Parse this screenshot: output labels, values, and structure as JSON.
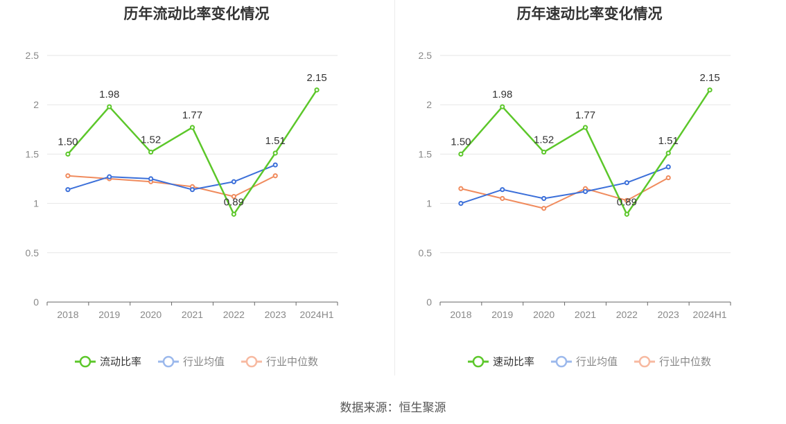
{
  "source_label": "数据来源：恒生聚源",
  "colors": {
    "primary": "#5cc72a",
    "avg": "#3b6fd9",
    "median": "#f08b5d",
    "avg_legend": "#9bb8ec",
    "median_legend": "#f7b9a0"
  },
  "chart_data": [
    {
      "type": "line",
      "title": "历年流动比率变化情况",
      "categories": [
        "2018",
        "2019",
        "2020",
        "2021",
        "2022",
        "2023",
        "2024H1"
      ],
      "ylim": [
        0,
        2.5
      ],
      "yticks": [
        "0",
        "0.5",
        "1",
        "1.5",
        "2",
        "2.5"
      ],
      "grid": true,
      "legend_position": "bottom",
      "series": [
        {
          "name": "流动比率",
          "values": [
            1.5,
            1.98,
            1.52,
            1.77,
            0.89,
            1.51,
            2.15
          ],
          "labels": [
            "1.50",
            "1.98",
            "1.52",
            "1.77",
            "0.89",
            "1.51",
            "2.15"
          ]
        },
        {
          "name": "行业均值",
          "values": [
            1.14,
            1.27,
            1.25,
            1.14,
            1.22,
            1.39,
            null
          ]
        },
        {
          "name": "行业中位数",
          "values": [
            1.28,
            1.25,
            1.22,
            1.17,
            1.07,
            1.28,
            null
          ]
        }
      ]
    },
    {
      "type": "line",
      "title": "历年速动比率变化情况",
      "categories": [
        "2018",
        "2019",
        "2020",
        "2021",
        "2022",
        "2023",
        "2024H1"
      ],
      "ylim": [
        0,
        2.5
      ],
      "yticks": [
        "0",
        "0.5",
        "1",
        "1.5",
        "2",
        "2.5"
      ],
      "grid": true,
      "legend_position": "bottom",
      "series": [
        {
          "name": "速动比率",
          "values": [
            1.5,
            1.98,
            1.52,
            1.77,
            0.89,
            1.51,
            2.15
          ],
          "labels": [
            "1.50",
            "1.98",
            "1.52",
            "1.77",
            "0.89",
            "1.51",
            "2.15"
          ]
        },
        {
          "name": "行业均值",
          "values": [
            1.0,
            1.14,
            1.05,
            1.12,
            1.21,
            1.37,
            null
          ]
        },
        {
          "name": "行业中位数",
          "values": [
            1.15,
            1.05,
            0.95,
            1.15,
            1.03,
            1.26,
            null
          ]
        }
      ]
    }
  ]
}
